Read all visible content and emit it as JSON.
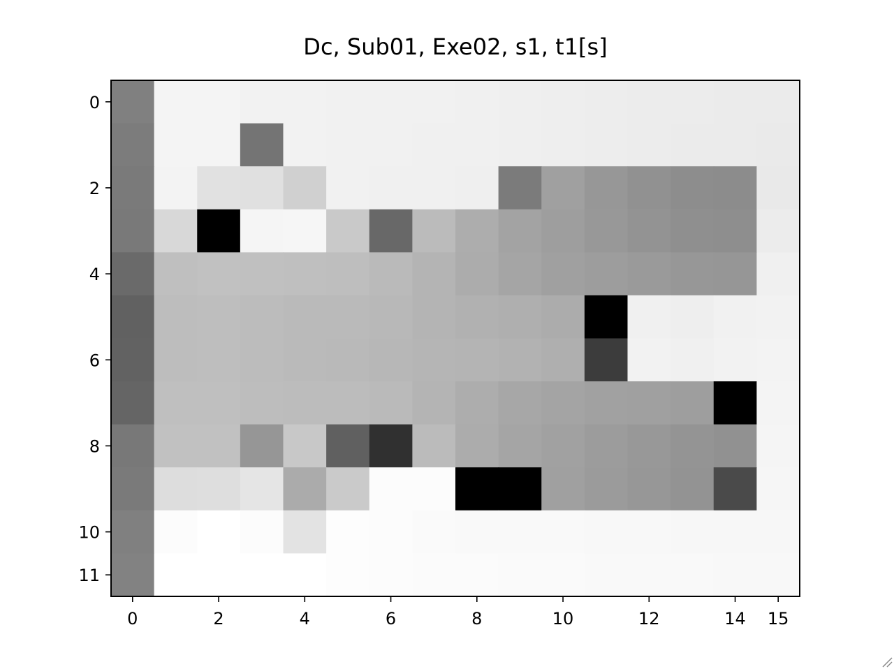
{
  "chart_data": {
    "type": "heatmap",
    "title": "Dc, Sub01, Exe02, s1, t1[s]",
    "xlabel": "",
    "ylabel": "",
    "colormap": "gray",
    "x_ticks": [
      0,
      2,
      4,
      6,
      8,
      10,
      12,
      14,
      15
    ],
    "y_ticks": [
      0,
      2,
      4,
      6,
      8,
      10,
      11
    ],
    "xlim": [
      -0.5,
      15.5
    ],
    "ylim": [
      11.5,
      -0.5
    ],
    "grid": false,
    "legend": "none",
    "z_note": "values are grayscale intensities 0-255 (0 = black, 255 = white)",
    "z": [
      [
        128,
        244,
        244,
        242,
        242,
        241,
        241,
        241,
        240,
        239,
        238,
        237,
        236,
        236,
        235,
        235
      ],
      [
        124,
        244,
        244,
        116,
        242,
        241,
        241,
        240,
        240,
        239,
        238,
        237,
        236,
        235,
        235,
        234
      ],
      [
        122,
        243,
        225,
        224,
        208,
        241,
        240,
        240,
        239,
        123,
        160,
        151,
        145,
        141,
        140,
        233
      ],
      [
        121,
        216,
        0,
        245,
        246,
        201,
        104,
        187,
        173,
        163,
        158,
        152,
        147,
        143,
        142,
        236
      ],
      [
        106,
        191,
        193,
        192,
        191,
        190,
        186,
        180,
        172,
        165,
        160,
        157,
        154,
        151,
        150,
        240
      ],
      [
        97,
        189,
        190,
        188,
        186,
        186,
        184,
        180,
        177,
        175,
        172,
        0,
        240,
        238,
        241,
        242
      ],
      [
        98,
        189,
        190,
        188,
        186,
        185,
        183,
        181,
        180,
        178,
        175,
        60,
        242,
        240,
        242,
        243
      ],
      [
        101,
        191,
        191,
        189,
        188,
        188,
        186,
        180,
        173,
        167,
        164,
        161,
        160,
        158,
        0,
        244
      ],
      [
        120,
        193,
        193,
        150,
        200,
        96,
        48,
        187,
        172,
        165,
        161,
        156,
        152,
        148,
        145,
        245
      ],
      [
        122,
        221,
        222,
        229,
        171,
        202,
        252,
        252,
        0,
        0,
        160,
        155,
        151,
        147,
        74,
        246
      ],
      [
        128,
        252,
        255,
        252,
        227,
        253,
        252,
        250,
        249,
        249,
        249,
        248,
        248,
        247,
        247,
        247
      ],
      [
        130,
        255,
        255,
        255,
        255,
        253,
        252,
        251,
        251,
        250,
        250,
        249,
        249,
        249,
        248,
        248
      ]
    ]
  }
}
